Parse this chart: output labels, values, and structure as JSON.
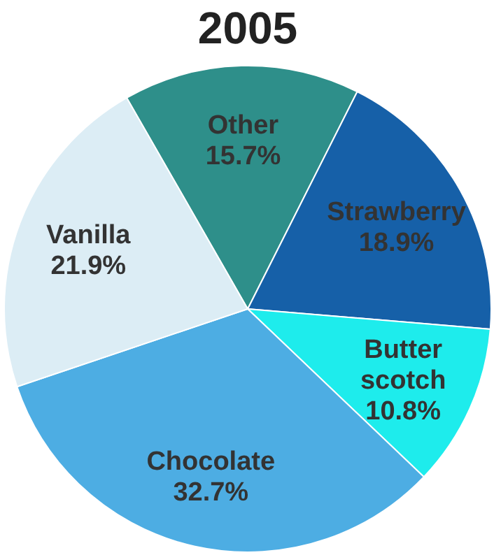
{
  "chart_data": {
    "type": "pie",
    "title": "2005",
    "categories": [
      "Other",
      "Strawberry",
      "Butter scotch",
      "Chocolate",
      "Vanilla"
    ],
    "values": [
      15.7,
      18.9,
      10.8,
      32.7,
      21.9
    ],
    "value_labels": [
      "15.7%",
      "18.9%",
      "10.8%",
      "32.7%",
      "21.9%"
    ],
    "colors": [
      "#2e8f8a",
      "#1660a8",
      "#1eecec",
      "#4dade3",
      "#dcedf5"
    ]
  }
}
